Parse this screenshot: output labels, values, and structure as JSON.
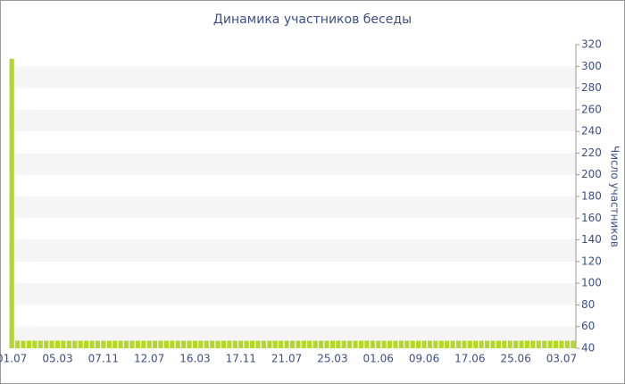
{
  "chart_data": {
    "type": "bar",
    "title": "Динамика участников беседы",
    "y_label": "Число участников",
    "categories": [
      "01.07",
      null,
      null,
      null,
      null,
      null,
      null,
      null,
      "05.03",
      null,
      null,
      null,
      null,
      null,
      null,
      null,
      "07.11",
      null,
      null,
      null,
      null,
      null,
      null,
      null,
      "12.07",
      null,
      null,
      null,
      null,
      null,
      null,
      null,
      "16.03",
      null,
      null,
      null,
      null,
      null,
      null,
      null,
      "17.11",
      null,
      null,
      null,
      null,
      null,
      null,
      null,
      "21.07",
      null,
      null,
      null,
      null,
      null,
      null,
      null,
      "25.03",
      null,
      null,
      null,
      null,
      null,
      null,
      null,
      "01.06",
      null,
      null,
      null,
      null,
      null,
      null,
      null,
      "09.06",
      null,
      null,
      null,
      null,
      null,
      null,
      null,
      "17.06",
      null,
      null,
      null,
      null,
      null,
      null,
      null,
      "25.06",
      null,
      null,
      null,
      null,
      null,
      null,
      null,
      "03.07",
      null,
      null
    ],
    "values": [
      307,
      47,
      47,
      47,
      47,
      47,
      47,
      47,
      47,
      47,
      47,
      47,
      47,
      47,
      47,
      47,
      47,
      47,
      47,
      47,
      47,
      47,
      47,
      47,
      47,
      47,
      47,
      47,
      47,
      47,
      47,
      47,
      47,
      47,
      47,
      47,
      47,
      47,
      47,
      47,
      47,
      47,
      47,
      47,
      47,
      47,
      47,
      47,
      47,
      47,
      47,
      47,
      47,
      47,
      47,
      47,
      47,
      47,
      47,
      47,
      47,
      47,
      47,
      47,
      47,
      47,
      47,
      47,
      47,
      47,
      47,
      47,
      47,
      47,
      47,
      47,
      47,
      47,
      47,
      47,
      47,
      47,
      47,
      47,
      47,
      47,
      47,
      47,
      47,
      47,
      47,
      47,
      47,
      47,
      47,
      47,
      47,
      47,
      47
    ],
    "color": "#b4d82a",
    "ylim": [
      40,
      320
    ],
    "yticks": [
      40,
      60,
      80,
      100,
      120,
      140,
      160,
      180,
      200,
      220,
      240,
      260,
      280,
      300,
      320
    ],
    "y_axis_side": "right",
    "grid": true
  }
}
